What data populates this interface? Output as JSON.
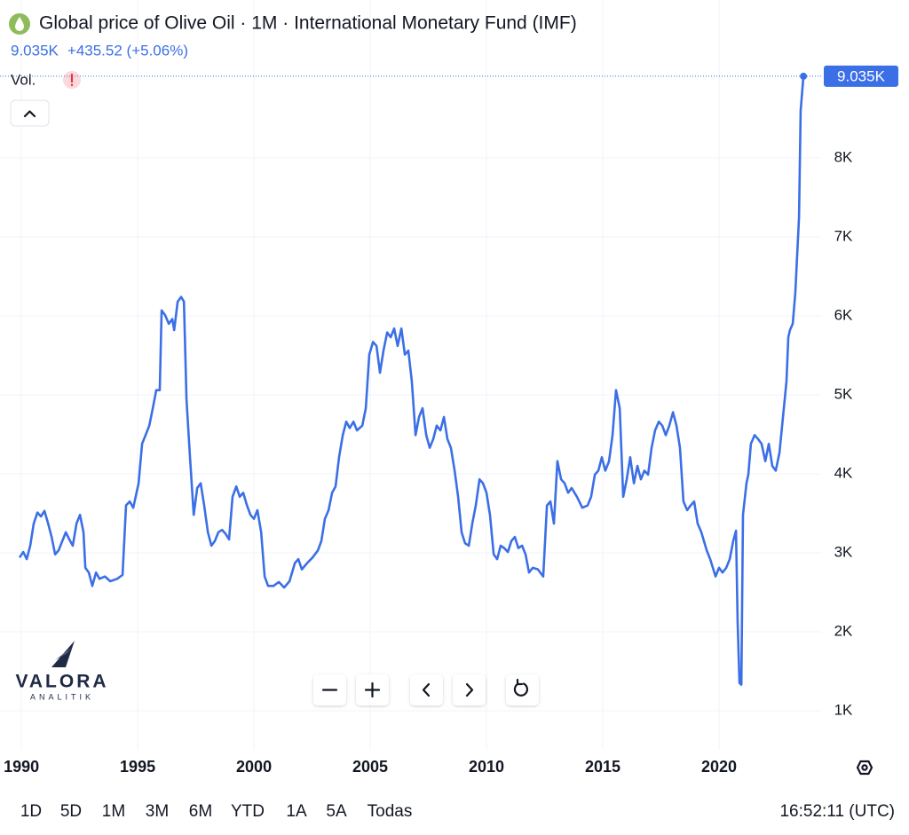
{
  "chart_data": {
    "type": "line",
    "title": "Global price of Olive Oil · 1M · International Monetary Fund (IMF)",
    "price_change": "+435.52 (+5.06%)",
    "volume_label": "Vol.",
    "color": "#3b6fe6",
    "grid": true,
    "xlim": [
      1989.08,
      2024.39
    ],
    "xticks": [
      1990,
      1995,
      2000,
      2005,
      2010,
      2015,
      2020
    ],
    "ylim": [
      505,
      9326
    ],
    "yticks": [
      {
        "value": 1000,
        "label": "1K"
      },
      {
        "value": 2000,
        "label": "2K"
      },
      {
        "value": 3000,
        "label": "3K"
      },
      {
        "value": 4000,
        "label": "4K"
      },
      {
        "value": 5000,
        "label": "5K"
      },
      {
        "value": 6000,
        "label": "6K"
      },
      {
        "value": 7000,
        "label": "7K"
      },
      {
        "value": 8000,
        "label": "8K"
      }
    ],
    "last_value": {
      "value": 9035,
      "label": "9.035K"
    },
    "x": [
      1989.92,
      1990.08,
      1990.23,
      1990.38,
      1990.53,
      1990.69,
      1990.84,
      1990.99,
      1991.15,
      1991.3,
      1991.45,
      1991.6,
      1991.76,
      1991.91,
      1992.06,
      1992.21,
      1992.37,
      1992.52,
      1992.67,
      1992.75,
      1992.9,
      1993.05,
      1993.21,
      1993.36,
      1993.59,
      1993.82,
      1994.12,
      1994.35,
      1994.5,
      1994.66,
      1994.81,
      1995.04,
      1995.19,
      1995.34,
      1995.5,
      1995.65,
      1995.8,
      1995.95,
      1996.03,
      1996.18,
      1996.34,
      1996.49,
      1996.57,
      1996.72,
      1996.87,
      1996.99,
      1997.1,
      1997.25,
      1997.41,
      1997.56,
      1997.71,
      1997.86,
      1998.02,
      1998.17,
      1998.32,
      1998.47,
      1998.63,
      1998.78,
      1998.93,
      1999.08,
      1999.24,
      1999.39,
      1999.54,
      1999.7,
      1999.85,
      2000.0,
      2000.15,
      2000.31,
      2000.46,
      2000.61,
      2000.84,
      2001.07,
      2001.3,
      2001.53,
      2001.76,
      2001.91,
      2002.06,
      2002.29,
      2002.52,
      2002.75,
      2002.9,
      2003.05,
      2003.21,
      2003.36,
      2003.51,
      2003.66,
      2003.82,
      2003.97,
      2004.12,
      2004.28,
      2004.43,
      2004.66,
      2004.81,
      2004.96,
      2005.12,
      2005.27,
      2005.42,
      2005.57,
      2005.73,
      2005.88,
      2006.03,
      2006.18,
      2006.34,
      2006.49,
      2006.64,
      2006.79,
      2006.95,
      2007.1,
      2007.25,
      2007.41,
      2007.56,
      2007.71,
      2007.86,
      2008.02,
      2008.17,
      2008.32,
      2008.47,
      2008.63,
      2008.78,
      2008.93,
      2009.08,
      2009.24,
      2009.39,
      2009.54,
      2009.7,
      2009.85,
      2010.0,
      2010.15,
      2010.31,
      2010.46,
      2010.61,
      2010.76,
      2010.92,
      2011.07,
      2011.22,
      2011.37,
      2011.53,
      2011.68,
      2011.83,
      2011.99,
      2012.21,
      2012.44,
      2012.6,
      2012.75,
      2012.9,
      2013.05,
      2013.21,
      2013.36,
      2013.51,
      2013.66,
      2013.89,
      2014.12,
      2014.35,
      2014.5,
      2014.66,
      2014.81,
      2014.96,
      2015.11,
      2015.27,
      2015.42,
      2015.57,
      2015.73,
      2015.88,
      2016.03,
      2016.18,
      2016.34,
      2016.49,
      2016.64,
      2016.79,
      2016.95,
      2017.1,
      2017.25,
      2017.41,
      2017.56,
      2017.71,
      2017.86,
      2018.02,
      2018.17,
      2018.32,
      2018.47,
      2018.63,
      2018.78,
      2018.93,
      2019.08,
      2019.24,
      2019.47,
      2019.62,
      2019.85,
      2020.0,
      2020.15,
      2020.31,
      2020.46,
      2020.61,
      2020.73,
      2020.8,
      2020.88,
      2020.96,
      2021.03,
      2021.18,
      2021.26,
      2021.37,
      2021.53,
      2021.68,
      2021.83,
      2021.99,
      2022.14,
      2022.29,
      2022.44,
      2022.6,
      2022.75,
      2022.9,
      2022.98,
      2023.05,
      2023.17,
      2023.28,
      2023.44,
      2023.51,
      2023.63
    ],
    "values": [
      2940,
      3010,
      2920,
      3090,
      3370,
      3510,
      3460,
      3530,
      3370,
      3200,
      2980,
      3030,
      3150,
      3260,
      3170,
      3090,
      3370,
      3480,
      3260,
      2810,
      2750,
      2580,
      2750,
      2670,
      2700,
      2640,
      2670,
      2720,
      3600,
      3650,
      3570,
      3880,
      4380,
      4490,
      4610,
      4830,
      5060,
      5060,
      6070,
      6010,
      5900,
      5960,
      5820,
      6180,
      6240,
      6180,
      4940,
      4210,
      3480,
      3820,
      3880,
      3600,
      3260,
      3090,
      3150,
      3260,
      3290,
      3240,
      3170,
      3710,
      3840,
      3710,
      3760,
      3600,
      3480,
      3430,
      3540,
      3260,
      2700,
      2580,
      2580,
      2630,
      2560,
      2640,
      2870,
      2920,
      2790,
      2870,
      2940,
      3030,
      3150,
      3430,
      3540,
      3760,
      3840,
      4210,
      4490,
      4660,
      4580,
      4660,
      4550,
      4610,
      4830,
      5510,
      5670,
      5620,
      5280,
      5560,
      5790,
      5730,
      5840,
      5620,
      5840,
      5510,
      5560,
      5170,
      4490,
      4720,
      4830,
      4490,
      4330,
      4440,
      4610,
      4550,
      4720,
      4440,
      4330,
      4040,
      3710,
      3260,
      3120,
      3090,
      3370,
      3600,
      3930,
      3880,
      3760,
      3480,
      2980,
      2920,
      3090,
      3060,
      3010,
      3150,
      3200,
      3060,
      3090,
      2980,
      2750,
      2810,
      2790,
      2700,
      3600,
      3650,
      3370,
      4160,
      3930,
      3880,
      3760,
      3820,
      3710,
      3570,
      3600,
      3710,
      3990,
      4040,
      4210,
      4040,
      4160,
      4490,
      5060,
      4830,
      3710,
      3930,
      4210,
      3880,
      4100,
      3930,
      4040,
      3990,
      4330,
      4550,
      4660,
      4610,
      4490,
      4610,
      4780,
      4610,
      4330,
      3650,
      3540,
      3600,
      3650,
      3370,
      3260,
      3030,
      2920,
      2700,
      2810,
      2750,
      2810,
      2920,
      3150,
      3280,
      2130,
      1350,
      1330,
      3480,
      3880,
      3990,
      4380,
      4490,
      4440,
      4380,
      4160,
      4380,
      4100,
      4040,
      4270,
      4720,
      5170,
      5730,
      5820,
      5900,
      6290,
      7250,
      8600,
      9035
    ]
  },
  "watermark": {
    "brand": "VALORA",
    "sub": "ANALITIK"
  },
  "toolbar": {
    "ranges": [
      "1D",
      "5D",
      "1M",
      "3M",
      "6M",
      "YTD",
      "1A",
      "5A",
      "Todas"
    ],
    "time": "16:52:11 (UTC)"
  }
}
